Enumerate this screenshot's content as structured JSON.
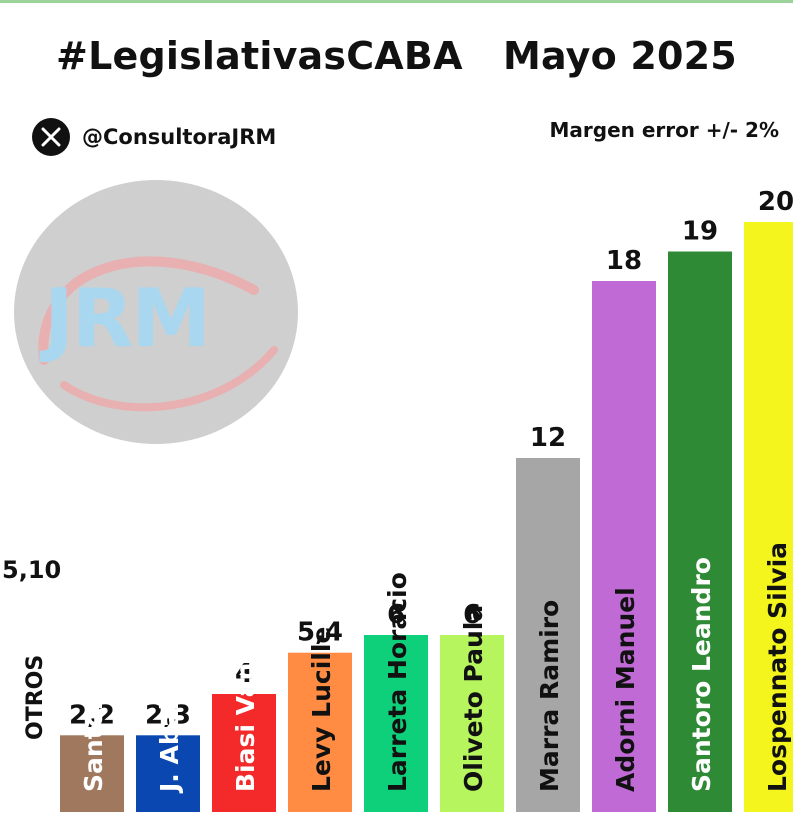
{
  "header": {
    "title": "#LegislativasCABA   Mayo 2025",
    "handle": "@ConsultoraJRM",
    "margin_note": "Margen error +/- 2%"
  },
  "logo": {
    "text": "JRM",
    "icon": "x-logo-icon"
  },
  "colors": {
    "background": "#ffffff",
    "bars": [
      "#a0785e",
      "#0a47b0",
      "#f42a2a",
      "#ff8c42",
      "#0fd07a",
      "#b7f55f",
      "#a6a6a6",
      "#c06ad6",
      "#2f8a35",
      "#f5f51e"
    ]
  },
  "chart_data": {
    "type": "bar",
    "title": "#LegislativasCABA   Mayo 2025",
    "xlabel": "",
    "ylabel": "",
    "other": {
      "label": "OTROS",
      "value_label": "5,10",
      "value": 5.1
    },
    "categories": [
      "Santoro Yamil",
      "J. Abal Medina",
      "Biasi Vanina",
      "Levy Lucille",
      "Larreta Horacio",
      "Oliveto Paula",
      "Marra Ramiro",
      "Adorni Manuel",
      "Santoro Leandro",
      "Lospennato Silvia"
    ],
    "values": [
      2.2,
      2.3,
      4,
      5.4,
      6,
      6,
      12,
      18,
      19,
      20
    ],
    "value_labels": [
      "2,2",
      "2,3",
      "4",
      "5,4",
      "6",
      "6",
      "12",
      "18",
      "19",
      "20"
    ],
    "grid": false,
    "legend": "none"
  }
}
